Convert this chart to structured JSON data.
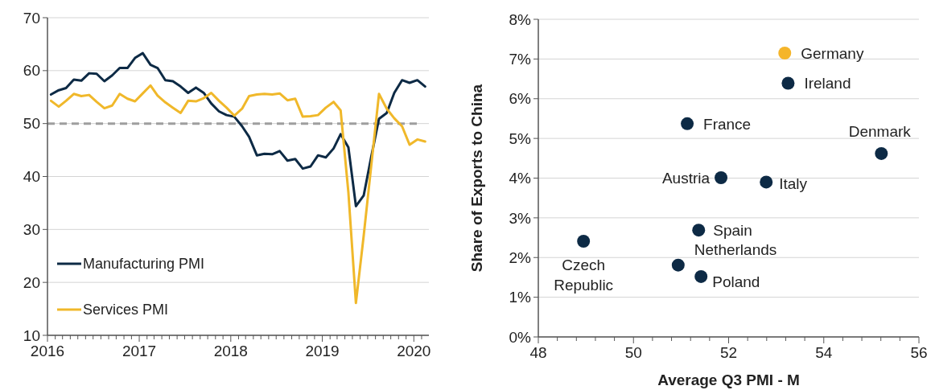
{
  "chart_data": [
    {
      "type": "line",
      "x": [
        "2016-01-15",
        "2016-02-15",
        "2016-03-15",
        "2016-04-15",
        "2016-05-15",
        "2016-06-15",
        "2016-07-15",
        "2016-08-15",
        "2016-09-15",
        "2016-10-15",
        "2016-11-15",
        "2016-12-15",
        "2017-01-15",
        "2017-02-15",
        "2017-03-15",
        "2017-04-15",
        "2017-05-15",
        "2017-06-15",
        "2017-07-15",
        "2017-08-15",
        "2017-09-15",
        "2017-10-15",
        "2017-11-15",
        "2017-12-15",
        "2018-01-15",
        "2018-02-15",
        "2018-03-15",
        "2018-04-15",
        "2018-05-15",
        "2018-06-15",
        "2018-07-15",
        "2018-08-15",
        "2018-09-15",
        "2018-10-15",
        "2018-11-15",
        "2018-12-15",
        "2019-01-15",
        "2019-02-15",
        "2019-03-15",
        "2019-04-15",
        "2019-05-15",
        "2019-06-15",
        "2019-07-15",
        "2019-08-15",
        "2019-09-15",
        "2019-10-15",
        "2019-11-15",
        "2019-12-15",
        "2020-01-15",
        "2020-02-15"
      ],
      "series": [
        {
          "name": "Manufacturing PMI",
          "color": "#0d2a45",
          "values": [
            55.5,
            56.3,
            56.7,
            58.3,
            58.1,
            59.5,
            59.4,
            58.0,
            59.1,
            60.5,
            60.5,
            62.4,
            63.3,
            61.1,
            60.5,
            58.2,
            58.0,
            57.0,
            55.8,
            56.8,
            55.8,
            53.8,
            52.3,
            51.6,
            51.3,
            49.5,
            47.5,
            44.0,
            44.3,
            44.2,
            44.8,
            43.0,
            43.3,
            41.5,
            41.9,
            44.0,
            43.6,
            45.3,
            48.0,
            45.5,
            34.4,
            36.4,
            43.7,
            50.9,
            52.0,
            55.8,
            58.2,
            57.7,
            58.2,
            57.0
          ]
        },
        {
          "name": "Services PMI",
          "color": "#f0b82a",
          "values": [
            54.3,
            53.2,
            54.3,
            55.6,
            55.2,
            55.4,
            54.1,
            52.9,
            53.4,
            55.6,
            54.7,
            54.2,
            55.7,
            57.2,
            55.3,
            54.0,
            53.0,
            52.0,
            54.3,
            54.2,
            54.8,
            55.8,
            54.3,
            53.0,
            51.5,
            52.8,
            55.2,
            55.5,
            55.6,
            55.5,
            55.7,
            54.4,
            54.7,
            51.3,
            51.4,
            51.6,
            53.0,
            54.1,
            52.5,
            37.0,
            16.1,
            28.8,
            42.0,
            55.6,
            52.8,
            51.0,
            49.5,
            46.0,
            47.0,
            46.6
          ]
        }
      ],
      "xlim": [
        "2016-01-01",
        "2020-03-01"
      ],
      "xticks": [
        "2016",
        {
          "value": "2016-02",
          "label": null
        },
        {
          "value": "2016-03",
          "label": null
        },
        {
          "value": "2016-04",
          "label": null
        },
        {
          "value": "2016-05",
          "label": null
        },
        {
          "value": "2016-06",
          "label": null
        },
        {
          "value": "2016-07",
          "label": null
        },
        {
          "value": "2016-08",
          "label": null
        },
        {
          "value": "2016-09",
          "label": null
        },
        {
          "value": "2016-10",
          "label": null
        },
        {
          "value": "2016-11",
          "label": null
        },
        {
          "value": "2016-12",
          "label": null
        },
        "2017",
        {
          "value": "2017-02",
          "label": null
        },
        {
          "value": "2017-03",
          "label": null
        },
        {
          "value": "2017-04",
          "label": null
        },
        {
          "value": "2017-05",
          "label": null
        },
        {
          "value": "2017-06",
          "label": null
        },
        {
          "value": "2017-07",
          "label": null
        },
        {
          "value": "2017-08",
          "label": null
        },
        {
          "value": "2017-09",
          "label": null
        },
        {
          "value": "2017-10",
          "label": null
        },
        {
          "value": "2017-11",
          "label": null
        },
        {
          "value": "2017-12",
          "label": null
        },
        "2018",
        {
          "value": "2018-02",
          "label": null
        },
        {
          "value": "2018-03",
          "label": null
        },
        {
          "value": "2018-04",
          "label": null
        },
        {
          "value": "2018-05",
          "label": null
        },
        {
          "value": "2018-06",
          "label": null
        },
        {
          "value": "2018-07",
          "label": null
        },
        {
          "value": "2018-08",
          "label": null
        },
        {
          "value": "2018-09",
          "label": null
        },
        {
          "value": "2018-10",
          "label": null
        },
        {
          "value": "2018-11",
          "label": null
        },
        {
          "value": "2018-12",
          "label": null
        },
        "2019",
        {
          "value": "2019-02",
          "label": null
        },
        {
          "value": "2019-03",
          "label": null
        },
        {
          "value": "2019-04",
          "label": null
        },
        {
          "value": "2019-05",
          "label": null
        },
        {
          "value": "2019-06",
          "label": null
        },
        {
          "value": "2019-07",
          "label": null
        },
        {
          "value": "2019-08",
          "label": null
        },
        {
          "value": "2019-09",
          "label": null
        },
        {
          "value": "2019-10",
          "label": null
        },
        {
          "value": "2019-11",
          "label": null
        },
        {
          "value": "2019-12",
          "label": null
        },
        "2020",
        {
          "value": "2020-02",
          "label": null
        }
      ],
      "ylim": [
        10,
        70
      ],
      "yticks": [
        10,
        20,
        30,
        40,
        50,
        60,
        70
      ],
      "grid": "y",
      "legend": "bottom left",
      "ref_lines": [
        {
          "axis": "y",
          "value": 50,
          "color": "#9e9e9e",
          "line_style": "dashed"
        }
      ]
    },
    {
      "type": "scatter",
      "xlabel": "Average Q3 PMI - M",
      "ylabel": "Share of Exports to China",
      "x": [
        53.18,
        53.25,
        51.13,
        55.21,
        51.84,
        52.79,
        51.37,
        48.95,
        50.94,
        51.42
      ],
      "values": [
        7.15,
        6.39,
        5.37,
        4.62,
        4.01,
        3.9,
        2.69,
        2.41,
        1.81,
        1.52
      ],
      "colors": [
        "#f5b52a",
        "#0d2a45",
        "#0d2a45",
        "#0d2a45",
        "#0d2a45",
        "#0d2a45",
        "#0d2a45",
        "#0d2a45",
        "#0d2a45",
        "#0d2a45"
      ],
      "xlim": [
        48,
        56
      ],
      "xticks": [
        48,
        {
          "value": 48.4,
          "label": null
        },
        {
          "value": 48.8,
          "label": null
        },
        {
          "value": 49.2,
          "label": null
        },
        {
          "value": 49.6,
          "label": null
        },
        50,
        {
          "value": 50.4,
          "label": null
        },
        {
          "value": 50.8,
          "label": null
        },
        {
          "value": 51.2,
          "label": null
        },
        {
          "value": 51.6,
          "label": null
        },
        52,
        {
          "value": 52.4,
          "label": null
        },
        {
          "value": 52.8,
          "label": null
        },
        {
          "value": 53.2,
          "label": null
        },
        {
          "value": 53.6,
          "label": null
        },
        54,
        {
          "value": 54.4,
          "label": null
        },
        {
          "value": 54.8,
          "label": null
        },
        {
          "value": 55.2,
          "label": null
        },
        {
          "value": 55.6,
          "label": null
        },
        56
      ],
      "ylim": [
        0,
        8
      ],
      "yticks": [
        {
          "value": 0,
          "label": "0%"
        },
        {
          "value": 1,
          "label": "1%"
        },
        {
          "value": 2,
          "label": "2%"
        },
        {
          "value": 3,
          "label": "3%"
        },
        {
          "value": 4,
          "label": "4%"
        },
        {
          "value": 5,
          "label": "5%"
        },
        {
          "value": 6,
          "label": "6%"
        },
        {
          "value": 7,
          "label": "7%"
        },
        {
          "value": 8,
          "label": "8%"
        }
      ],
      "grid": "y",
      "annotations": [
        {
          "text": "Germany",
          "x": 53.18,
          "y": 7.15
        },
        {
          "text": "Ireland",
          "x": 53.25,
          "y": 6.39
        },
        {
          "text": "France",
          "x": 51.13,
          "y": 5.37
        },
        {
          "text": "Denmark",
          "x": 55.21,
          "y": 4.62
        },
        {
          "text": "Austria",
          "x": 51.84,
          "y": 4.01
        },
        {
          "text": "Italy",
          "x": 52.79,
          "y": 3.9
        },
        {
          "text": "Spain",
          "x": 51.37,
          "y": 2.69
        },
        {
          "text": "Czech Republic",
          "x": 48.95,
          "y": 2.41
        },
        {
          "text": "Netherlands",
          "x": 50.94,
          "y": 1.81
        },
        {
          "text": "Poland",
          "x": 51.42,
          "y": 1.52
        }
      ]
    }
  ]
}
